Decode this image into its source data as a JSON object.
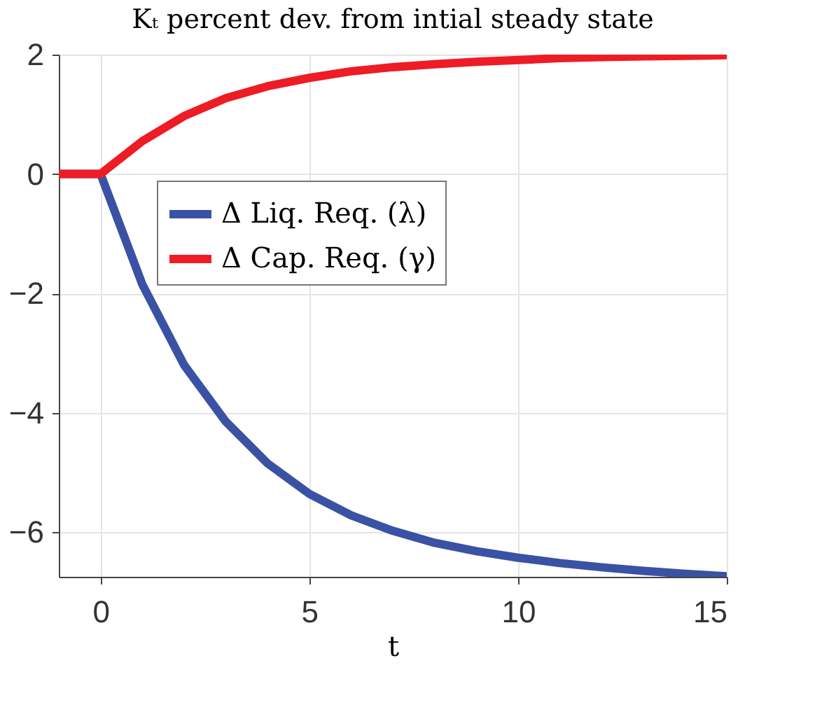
{
  "chart_data": {
    "type": "line",
    "title": "Kₜ percent dev. from intial steady state",
    "xlabel": "t",
    "x": [
      -1,
      0,
      1,
      2,
      3,
      4,
      5,
      6,
      7,
      8,
      9,
      10,
      11,
      12,
      13,
      14,
      15
    ],
    "series": [
      {
        "name": "Δ Liq. Req. (λ)",
        "color": "#3a52a4",
        "values": [
          0,
          0,
          -1.85,
          -3.2,
          -4.15,
          -4.85,
          -5.36,
          -5.72,
          -5.98,
          -6.18,
          -6.32,
          -6.43,
          -6.52,
          -6.59,
          -6.65,
          -6.7,
          -6.74
        ]
      },
      {
        "name": "Δ Cap. Req. (γ)",
        "color": "#ee1c25",
        "values": [
          0,
          0,
          0.55,
          0.97,
          1.27,
          1.47,
          1.61,
          1.72,
          1.79,
          1.84,
          1.88,
          1.91,
          1.94,
          1.96,
          1.97,
          1.98,
          1.99
        ]
      }
    ],
    "xlim": [
      -1,
      15
    ],
    "ylim": [
      -6.75,
      2
    ],
    "xticks": [
      0,
      5,
      10,
      15
    ],
    "yticks": [
      -6,
      -4,
      -2,
      0,
      2
    ],
    "grid": true,
    "legend": "top",
    "marker": "none",
    "line_style": "solid"
  }
}
